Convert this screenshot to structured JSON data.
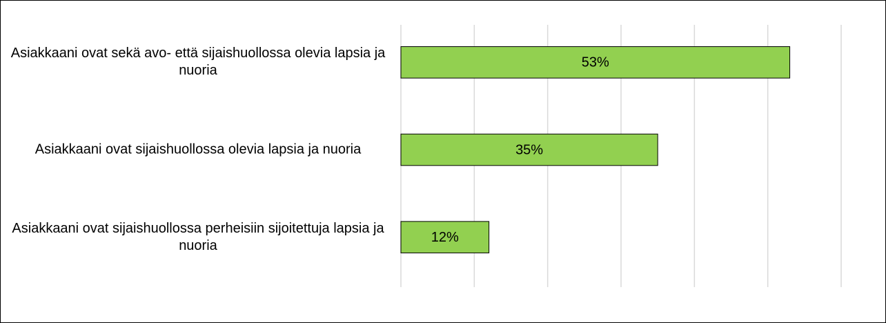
{
  "chart_data": {
    "type": "bar",
    "orientation": "horizontal",
    "categories": [
      "Asiakkaani ovat sekä avo- että sijaishuollossa olevia lapsia ja nuoria",
      "Asiakkaani ovat sijaishuollossa olevia lapsia ja nuoria",
      "Asiakkaani ovat sijaishuollossa perheisiin sijoitettuja lapsia ja nuoria"
    ],
    "values": [
      53,
      35,
      12
    ],
    "value_labels": [
      "53%",
      "35%",
      "12%"
    ],
    "color": "#92d050",
    "xlim": [
      0,
      60
    ],
    "xticks": [
      0,
      10,
      20,
      30,
      40,
      50,
      60
    ],
    "grid": true
  }
}
